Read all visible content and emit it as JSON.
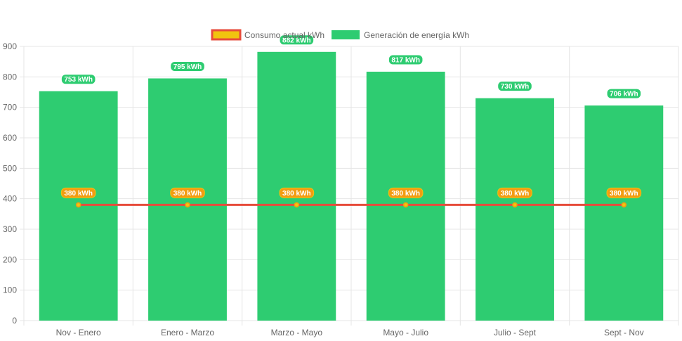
{
  "chart_data": {
    "type": "bar",
    "categories": [
      "Nov - Enero",
      "Enero - Marzo",
      "Marzo - Mayo",
      "Mayo - Julio",
      "Julio - Sept",
      "Sept - Nov"
    ],
    "series": [
      {
        "name": "Consumo actual kWh",
        "type": "line",
        "values": [
          380,
          380,
          380,
          380,
          380,
          380
        ],
        "color": "#e74c3c",
        "fill": "#f1c40f",
        "data_labels": [
          "380 kWh",
          "380 kWh",
          "380 kWh",
          "380 kWh",
          "380 kWh",
          "380 kWh"
        ]
      },
      {
        "name": "Generación de energía kWh",
        "type": "bar",
        "values": [
          753,
          795,
          882,
          817,
          730,
          706
        ],
        "color": "#2ecc71",
        "data_labels": [
          "753 kWh",
          "795 kWh",
          "882 kWh",
          "817 kWh",
          "730 kWh",
          "706 kWh"
        ]
      }
    ],
    "y_ticks": [
      "0",
      "100",
      "200",
      "300",
      "400",
      "500",
      "600",
      "700",
      "800",
      "900"
    ],
    "ylim": [
      0,
      900
    ],
    "grid": true,
    "legend_position": "top"
  },
  "colors": {
    "grid": "#e5e5e5",
    "axis_text": "#666666",
    "line_badge": "#f39c12"
  }
}
